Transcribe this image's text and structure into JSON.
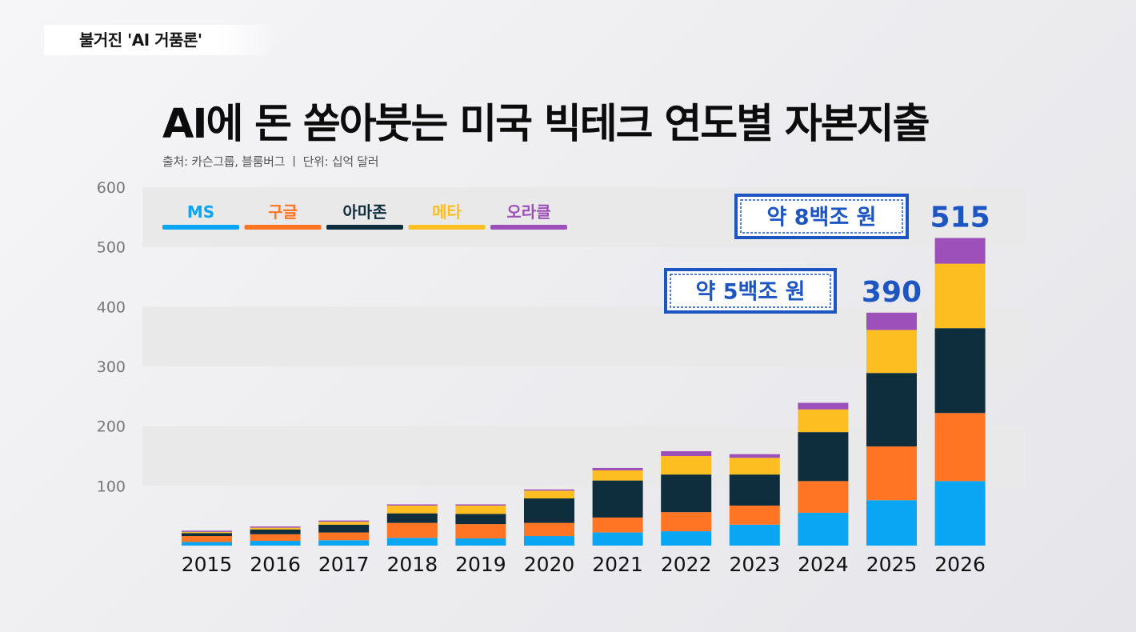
{
  "banner": {
    "text": "불거진 'AI 거품론'"
  },
  "header": {
    "title": "AI에 돈 쏟아붓는 미국 빅테크 연도별 자본지출",
    "subtitle": "출처: 카슨그룹, 블룸버그 ㅣ 단위: 십억 달러"
  },
  "colors": {
    "MS": "#0aa6f3",
    "google": "#ff7524",
    "amazon": "#0f2e3d",
    "meta": "#fdbe22",
    "oracle": "#9d4fba",
    "label_blue": "#1d55c3",
    "band": "#e9e9e9"
  },
  "chart_data": {
    "type": "bar",
    "stacked": true,
    "title": "AI에 돈 쏟아붓는 미국 빅테크 연도별 자본지출",
    "ylabel": "십억 달러",
    "ylim": [
      0,
      600
    ],
    "yticks": [
      "100",
      "200",
      "300",
      "400",
      "500",
      "600"
    ],
    "categories": [
      "2015",
      "2016",
      "2017",
      "2018",
      "2019",
      "2020",
      "2021",
      "2022",
      "2023",
      "2024",
      "2025",
      "2026"
    ],
    "series": [
      {
        "name": "MS",
        "color_key": "MS",
        "values": [
          6,
          8,
          9,
          13,
          12,
          16,
          22,
          24,
          35,
          55,
          76,
          108
        ]
      },
      {
        "name": "구글",
        "color_key": "google",
        "values": [
          10,
          11,
          13,
          25,
          24,
          22,
          25,
          32,
          32,
          53,
          90,
          114
        ]
      },
      {
        "name": "아마존",
        "color_key": "amazon",
        "values": [
          5,
          8,
          13,
          16,
          17,
          41,
          62,
          63,
          52,
          82,
          123,
          142
        ]
      },
      {
        "name": "메타",
        "color_key": "meta",
        "values": [
          2,
          3,
          5,
          13,
          14,
          13,
          17,
          31,
          28,
          38,
          72,
          108
        ]
      },
      {
        "name": "오라클",
        "color_key": "oracle",
        "values": [
          2,
          2,
          2,
          2,
          2,
          2,
          4,
          8,
          6,
          11,
          29,
          43
        ]
      }
    ],
    "totals": [
      {
        "year": "2025",
        "value": "390",
        "callout": "약 5백조 원"
      },
      {
        "year": "2026",
        "value": "515",
        "callout": "약 8백조 원"
      }
    ],
    "legend_position": "top-left"
  }
}
